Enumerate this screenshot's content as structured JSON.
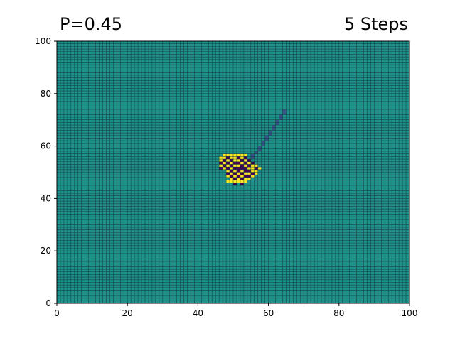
{
  "titles": {
    "left": "P=0.45",
    "right": "5 Steps"
  },
  "chart_data": {
    "type": "heatmap",
    "title": "",
    "xlabel": "",
    "ylabel": "",
    "xlim": [
      0,
      100
    ],
    "ylim": [
      0,
      100
    ],
    "xticks": [
      "0",
      "20",
      "40",
      "60",
      "80",
      "100"
    ],
    "yticks": [
      "0",
      "20",
      "40",
      "60",
      "80",
      "100"
    ],
    "grid_size": [
      100,
      100
    ],
    "grid_lines": true,
    "colormap": "viridis",
    "colors": {
      "background_cell": "#21918c",
      "grid_line": "#0f3b3a",
      "trail": "#3b528b",
      "occupied": "#fde725",
      "empty_hole": "#440154"
    },
    "background_value": 0,
    "trail_cells": [
      [
        54,
        54
      ],
      [
        55,
        55
      ],
      [
        55,
        56
      ],
      [
        56,
        57
      ],
      [
        57,
        58
      ],
      [
        57,
        59
      ],
      [
        58,
        60
      ],
      [
        58,
        61
      ],
      [
        59,
        62
      ],
      [
        59,
        63
      ],
      [
        60,
        64
      ],
      [
        60,
        65
      ],
      [
        61,
        66
      ],
      [
        61,
        67
      ],
      [
        62,
        68
      ],
      [
        62,
        69
      ],
      [
        63,
        70
      ],
      [
        63,
        71
      ],
      [
        64,
        72
      ],
      [
        64,
        73
      ]
    ],
    "yellow_cells": [
      [
        47,
        56
      ],
      [
        48,
        56
      ],
      [
        49,
        56
      ],
      [
        50,
        56
      ],
      [
        51,
        56
      ],
      [
        52,
        56
      ],
      [
        53,
        56
      ],
      [
        46,
        55
      ],
      [
        47,
        55
      ],
      [
        49,
        55
      ],
      [
        50,
        55
      ],
      [
        52,
        55
      ],
      [
        46,
        54
      ],
      [
        48,
        54
      ],
      [
        50,
        54
      ],
      [
        51,
        54
      ],
      [
        53,
        54
      ],
      [
        47,
        53
      ],
      [
        49,
        53
      ],
      [
        52,
        53
      ],
      [
        54,
        53
      ],
      [
        46,
        52
      ],
      [
        48,
        52
      ],
      [
        50,
        52
      ],
      [
        51,
        52
      ],
      [
        53,
        52
      ],
      [
        55,
        52
      ],
      [
        56,
        52
      ],
      [
        47,
        51
      ],
      [
        49,
        51
      ],
      [
        54,
        51
      ],
      [
        55,
        51
      ],
      [
        57,
        51
      ],
      [
        48,
        50
      ],
      [
        50,
        50
      ],
      [
        52,
        50
      ],
      [
        55,
        50
      ],
      [
        56,
        50
      ],
      [
        49,
        49
      ],
      [
        51,
        49
      ],
      [
        53,
        49
      ],
      [
        54,
        49
      ],
      [
        56,
        49
      ],
      [
        48,
        48
      ],
      [
        50,
        48
      ],
      [
        52,
        48
      ],
      [
        55,
        48
      ],
      [
        49,
        47
      ],
      [
        51,
        47
      ],
      [
        53,
        47
      ],
      [
        54,
        47
      ],
      [
        48,
        46
      ],
      [
        49,
        46
      ],
      [
        50,
        46
      ],
      [
        51,
        46
      ],
      [
        52,
        46
      ],
      [
        53,
        46
      ]
    ],
    "dark_cells": [
      [
        48,
        55
      ],
      [
        51,
        55
      ],
      [
        53,
        55
      ],
      [
        47,
        54
      ],
      [
        49,
        54
      ],
      [
        52,
        54
      ],
      [
        54,
        54
      ],
      [
        46,
        53
      ],
      [
        48,
        53
      ],
      [
        50,
        53
      ],
      [
        51,
        53
      ],
      [
        53,
        53
      ],
      [
        55,
        53
      ],
      [
        47,
        52
      ],
      [
        49,
        52
      ],
      [
        52,
        52
      ],
      [
        54,
        52
      ],
      [
        46,
        51
      ],
      [
        48,
        51
      ],
      [
        50,
        51
      ],
      [
        51,
        51
      ],
      [
        52,
        51
      ],
      [
        53,
        51
      ],
      [
        56,
        51
      ],
      [
        49,
        50
      ],
      [
        51,
        50
      ],
      [
        53,
        50
      ],
      [
        54,
        50
      ],
      [
        48,
        49
      ],
      [
        50,
        49
      ],
      [
        52,
        49
      ],
      [
        55,
        49
      ],
      [
        49,
        48
      ],
      [
        51,
        48
      ],
      [
        53,
        48
      ],
      [
        54,
        48
      ],
      [
        50,
        47
      ],
      [
        52,
        47
      ],
      [
        50,
        45
      ],
      [
        52,
        45
      ]
    ]
  }
}
